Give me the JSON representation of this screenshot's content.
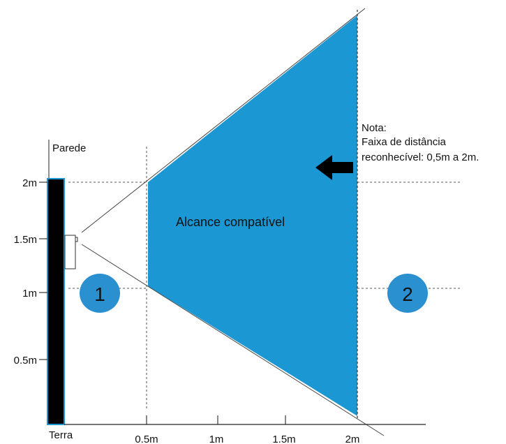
{
  "labels": {
    "wall": "Parede",
    "ground": "Terra",
    "zone": "Alcance compatível",
    "note_title": "Nota:",
    "note_line1": "Faixa de distância",
    "note_line2": "reconhecível: 0,5m a 2m."
  },
  "y_ticks": [
    "2m",
    "1.5m",
    "1m",
    "0.5m"
  ],
  "x_ticks": [
    "0.5m",
    "1m",
    "1.5m",
    "2m"
  ],
  "markers": [
    "1",
    "2"
  ],
  "colors": {
    "zone": "#1b97d4",
    "marker": "#2a90d0",
    "wall": "#000000",
    "wall_edge": "#1b97d4",
    "line": "#444444",
    "arrow": "#000000"
  },
  "icons": [
    "sensor-device-icon",
    "arrow-left-icon"
  ]
}
